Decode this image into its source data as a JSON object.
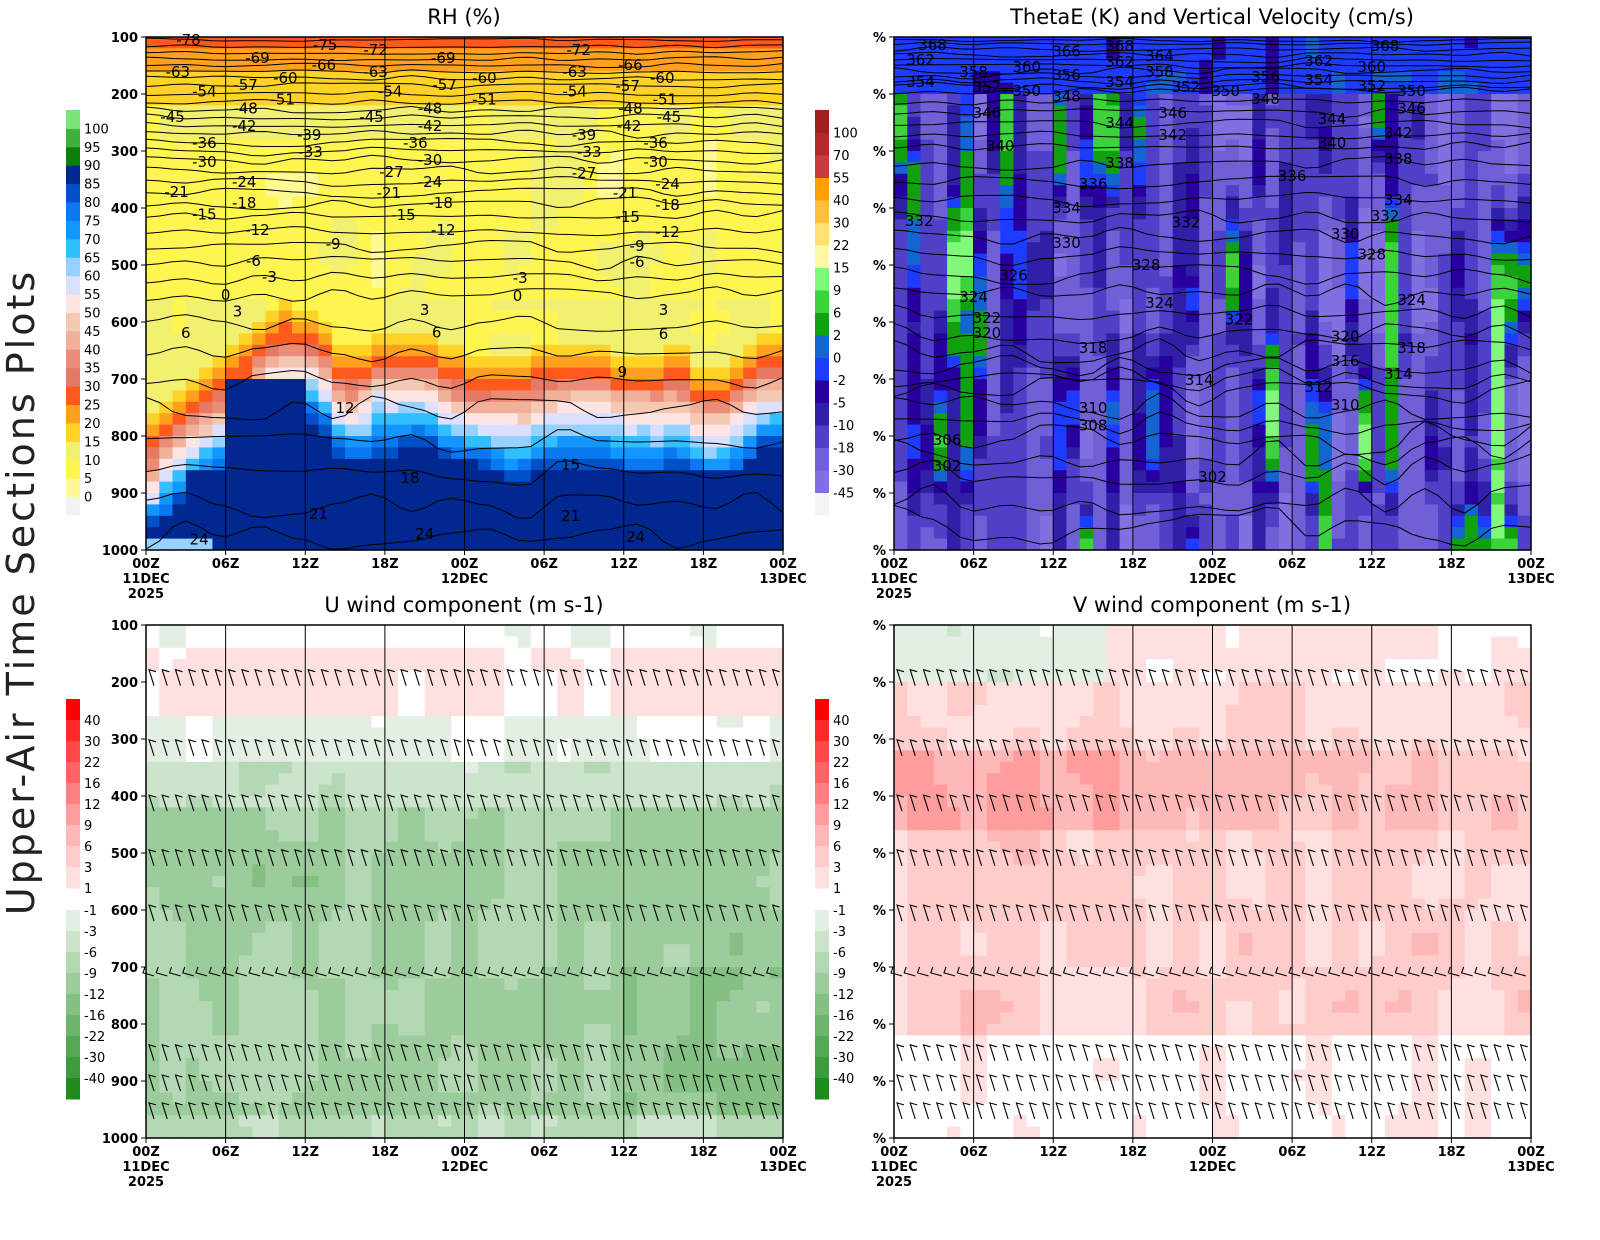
{
  "side_title": "Upper-Air Time Sections Plots",
  "x_ticks": [
    [
      "00Z",
      "11DEC",
      "2025"
    ],
    [
      "06Z"
    ],
    [
      "12Z"
    ],
    [
      "18Z"
    ],
    [
      "00Z",
      "12DEC"
    ],
    [
      "06Z"
    ],
    [
      "12Z"
    ],
    [
      "18Z"
    ],
    [
      "00Z",
      "13DEC"
    ]
  ],
  "x_tick_hours": [
    0,
    6,
    12,
    18,
    24,
    30,
    36,
    42,
    48
  ],
  "y_ticks_pressure": [
    "100",
    "200",
    "300",
    "400",
    "500",
    "600",
    "700",
    "800",
    "900",
    "1000"
  ],
  "y_ticks_percent": [
    "%",
    "%",
    "%",
    "%",
    "%",
    "%",
    "%",
    "%",
    "%",
    "%"
  ],
  "chart_data": [
    {
      "type": "heatmap",
      "title": "RH (%)",
      "x_range_hours": [
        0,
        48
      ],
      "y_range": [
        100,
        1000
      ],
      "colorbar": {
        "labels": [
          "0",
          "5",
          "10",
          "15",
          "20",
          "25",
          "30",
          "35",
          "40",
          "45",
          "50",
          "55",
          "60",
          "65",
          "70",
          "75",
          "80",
          "85",
          "90",
          "95",
          "100"
        ],
        "levels": [
          0,
          5,
          10,
          15,
          20,
          25,
          30,
          35,
          40,
          45,
          50,
          55,
          60,
          65,
          70,
          75,
          80,
          85,
          90,
          95,
          100
        ],
        "colors": [
          "#f2f2f2",
          "#fffa96",
          "#fff550",
          "#f2f070",
          "#ffd228",
          "#ffa01e",
          "#ff5a1e",
          "#e67864",
          "#eb8c78",
          "#f0b09a",
          "#f5c8b4",
          "#ffe4e4",
          "#dce0ff",
          "#96d2ff",
          "#32beff",
          "#1496ff",
          "#0a78f0",
          "#0050c8",
          "#002890",
          "#0a800a",
          "#3cb43c",
          "#78e678"
        ]
      },
      "contour_labels": [
        {
          "t": 3.2,
          "p": 105,
          "text": "-78"
        },
        {
          "t": 8.4,
          "p": 137,
          "text": "-69"
        },
        {
          "t": 13.5,
          "p": 114,
          "text": "-75"
        },
        {
          "t": 17.3,
          "p": 123,
          "text": "-72"
        },
        {
          "t": 22.4,
          "p": 137,
          "text": "-69"
        },
        {
          "t": 32.6,
          "p": 123,
          "text": "-72"
        },
        {
          "t": 2.4,
          "p": 161,
          "text": "-63"
        },
        {
          "t": 13.4,
          "p": 149,
          "text": "-66"
        },
        {
          "t": 17.3,
          "p": 161,
          "text": "-63"
        },
        {
          "t": 25.5,
          "p": 172,
          "text": "-60"
        },
        {
          "t": 32.3,
          "p": 161,
          "text": "-63"
        },
        {
          "t": 36.5,
          "p": 149,
          "text": "-66"
        },
        {
          "t": 7.5,
          "p": 184,
          "text": "-57"
        },
        {
          "t": 10.5,
          "p": 172,
          "text": "-60"
        },
        {
          "t": 22.5,
          "p": 184,
          "text": "-57"
        },
        {
          "t": 36.3,
          "p": 186,
          "text": "-57"
        },
        {
          "t": 38.9,
          "p": 172,
          "text": "-60"
        },
        {
          "t": 4.4,
          "p": 196,
          "text": "-54"
        },
        {
          "t": 18.4,
          "p": 196,
          "text": "-54"
        },
        {
          "t": 25.5,
          "p": 210,
          "text": "-51"
        },
        {
          "t": 32.3,
          "p": 196,
          "text": "-54"
        },
        {
          "t": 10.3,
          "p": 210,
          "text": "-51"
        },
        {
          "t": 39.1,
          "p": 210,
          "text": "-51"
        },
        {
          "t": 7.5,
          "p": 225,
          "text": "-48"
        },
        {
          "t": 21.4,
          "p": 225,
          "text": "-48"
        },
        {
          "t": 36.5,
          "p": 225,
          "text": "-48"
        },
        {
          "t": 2,
          "p": 240,
          "text": "-45"
        },
        {
          "t": 17,
          "p": 240,
          "text": "-45"
        },
        {
          "t": 39.4,
          "p": 240,
          "text": "-45"
        },
        {
          "t": 7.4,
          "p": 256,
          "text": "-42"
        },
        {
          "t": 21.4,
          "p": 256,
          "text": "-42"
        },
        {
          "t": 36.4,
          "p": 256,
          "text": "-42"
        },
        {
          "t": 12.3,
          "p": 272,
          "text": "-39"
        },
        {
          "t": 33,
          "p": 272,
          "text": "-39"
        },
        {
          "t": 4.4,
          "p": 286,
          "text": "-36"
        },
        {
          "t": 20.3,
          "p": 286,
          "text": "-36"
        },
        {
          "t": 38.4,
          "p": 286,
          "text": "-36"
        },
        {
          "t": 12.4,
          "p": 302,
          "text": "-33"
        },
        {
          "t": 33.4,
          "p": 302,
          "text": "-33"
        },
        {
          "t": 4.4,
          "p": 319,
          "text": "-30"
        },
        {
          "t": 21.4,
          "p": 316,
          "text": "-30"
        },
        {
          "t": 38.4,
          "p": 319,
          "text": "-30"
        },
        {
          "t": 18.5,
          "p": 337,
          "text": "-27"
        },
        {
          "t": 33,
          "p": 339,
          "text": "-27"
        },
        {
          "t": 7.4,
          "p": 354,
          "text": "-24"
        },
        {
          "t": 21.4,
          "p": 354,
          "text": "-24"
        },
        {
          "t": 39.3,
          "p": 358,
          "text": "-24"
        },
        {
          "t": 2.3,
          "p": 372,
          "text": "-21"
        },
        {
          "t": 18.3,
          "p": 374,
          "text": "-21"
        },
        {
          "t": 36.1,
          "p": 374,
          "text": "-21"
        },
        {
          "t": 7.4,
          "p": 391,
          "text": "-18"
        },
        {
          "t": 22.2,
          "p": 391,
          "text": "-18"
        },
        {
          "t": 39.3,
          "p": 395,
          "text": "-18"
        },
        {
          "t": 4.4,
          "p": 411,
          "text": "-15"
        },
        {
          "t": 19.4,
          "p": 412,
          "text": "-15"
        },
        {
          "t": 36.3,
          "p": 416,
          "text": "-15"
        },
        {
          "t": 8.4,
          "p": 439,
          "text": "-12"
        },
        {
          "t": 22.4,
          "p": 439,
          "text": "-12"
        },
        {
          "t": 39.3,
          "p": 442,
          "text": "-12"
        },
        {
          "t": 14.1,
          "p": 463,
          "text": "-9"
        },
        {
          "t": 37,
          "p": 467,
          "text": "-9"
        },
        {
          "t": 8.1,
          "p": 493,
          "text": "-6"
        },
        {
          "t": 37,
          "p": 495,
          "text": "-6"
        },
        {
          "t": 9.3,
          "p": 521,
          "text": "-3"
        },
        {
          "t": 28.2,
          "p": 523,
          "text": "-3"
        },
        {
          "t": 6,
          "p": 553,
          "text": "0"
        },
        {
          "t": 28,
          "p": 554,
          "text": "0"
        },
        {
          "t": 6.9,
          "p": 582,
          "text": "3"
        },
        {
          "t": 21,
          "p": 579,
          "text": "3"
        },
        {
          "t": 39,
          "p": 579,
          "text": "3"
        },
        {
          "t": 3,
          "p": 619,
          "text": "6"
        },
        {
          "t": 21.9,
          "p": 618,
          "text": "6"
        },
        {
          "t": 39,
          "p": 621,
          "text": "6"
        },
        {
          "t": 35.9,
          "p": 688,
          "text": "9"
        },
        {
          "t": 15,
          "p": 751,
          "text": "12"
        },
        {
          "t": 32,
          "p": 851,
          "text": "15"
        },
        {
          "t": 19.9,
          "p": 874,
          "text": "18"
        },
        {
          "t": 13,
          "p": 937,
          "text": "21"
        },
        {
          "t": 32,
          "p": 940,
          "text": "21"
        },
        {
          "t": 4,
          "p": 982,
          "text": "24"
        },
        {
          "t": 21,
          "p": 972,
          "text": "24"
        },
        {
          "t": 36.9,
          "p": 977,
          "text": "24"
        }
      ]
    },
    {
      "type": "heatmap",
      "title": "ThetaE (K) and Vertical Velocity (cm/s)",
      "x_range_hours": [
        0,
        48
      ],
      "colorbar": {
        "labels": [
          "-45",
          "-30",
          "-18",
          "-10",
          "-5",
          "-2",
          "0",
          "2",
          "6",
          "9",
          "15",
          "22",
          "30",
          "40",
          "55",
          "70",
          "100"
        ],
        "levels": [
          -45,
          -30,
          -18,
          -10,
          -5,
          -2,
          0,
          2,
          6,
          9,
          15,
          22,
          30,
          40,
          55,
          70,
          100
        ],
        "colors": [
          "#f4f4f4",
          "#8070e0",
          "#7060d8",
          "#5040c8",
          "#3020a8",
          "#2800a0",
          "#1e3cff",
          "#1464d2",
          "#10a010",
          "#3cd23c",
          "#80f878",
          "#fff8a8",
          "#ffe070",
          "#ffbe3c",
          "#ffa000",
          "#c83c3c",
          "#b42828",
          "#a02020"
        ]
      },
      "contour_labels": [
        {
          "t": 2.9,
          "p": 114,
          "text": "368"
        },
        {
          "t": 2,
          "p": 140,
          "text": "362"
        },
        {
          "t": 2,
          "p": 179,
          "text": "354"
        },
        {
          "t": 6,
          "p": 161,
          "text": "358"
        },
        {
          "t": 7,
          "p": 188,
          "text": "352"
        },
        {
          "t": 10,
          "p": 153,
          "text": "360"
        },
        {
          "t": 10,
          "p": 195,
          "text": "350"
        },
        {
          "t": 13,
          "p": 125,
          "text": "366"
        },
        {
          "t": 13,
          "p": 167,
          "text": "356"
        },
        {
          "t": 13,
          "p": 204,
          "text": "348"
        },
        {
          "t": 17,
          "p": 116,
          "text": "368"
        },
        {
          "t": 17,
          "p": 144,
          "text": "362"
        },
        {
          "t": 17,
          "p": 179,
          "text": "354"
        },
        {
          "t": 20,
          "p": 133,
          "text": "364"
        },
        {
          "t": 20,
          "p": 161,
          "text": "358"
        },
        {
          "t": 22,
          "p": 188,
          "text": "352"
        },
        {
          "t": 25,
          "p": 195,
          "text": "350"
        },
        {
          "t": 28,
          "p": 170,
          "text": "356"
        },
        {
          "t": 28,
          "p": 209,
          "text": "348"
        },
        {
          "t": 32,
          "p": 142,
          "text": "362"
        },
        {
          "t": 32,
          "p": 175,
          "text": "354"
        },
        {
          "t": 37,
          "p": 116,
          "text": "368"
        },
        {
          "t": 36,
          "p": 153,
          "text": "360"
        },
        {
          "t": 36,
          "p": 186,
          "text": "352"
        },
        {
          "t": 39,
          "p": 195,
          "text": "350"
        },
        {
          "t": 39,
          "p": 225,
          "text": "346"
        },
        {
          "t": 7,
          "p": 233,
          "text": "346"
        },
        {
          "t": 8,
          "p": 291,
          "text": "340"
        },
        {
          "t": 17,
          "p": 251,
          "text": "344"
        },
        {
          "t": 21,
          "p": 272,
          "text": "342"
        },
        {
          "t": 21,
          "p": 233,
          "text": "346"
        },
        {
          "t": 33,
          "p": 244,
          "text": "344"
        },
        {
          "t": 33,
          "p": 286,
          "text": "340"
        },
        {
          "t": 38,
          "p": 268,
          "text": "342"
        },
        {
          "t": 38,
          "p": 314,
          "text": "338"
        },
        {
          "t": 17,
          "p": 321,
          "text": "338"
        },
        {
          "t": 15,
          "p": 358,
          "text": "336"
        },
        {
          "t": 30,
          "p": 344,
          "text": "336"
        },
        {
          "t": 13,
          "p": 400,
          "text": "334"
        },
        {
          "t": 38,
          "p": 386,
          "text": "334"
        },
        {
          "t": 37,
          "p": 414,
          "text": "332"
        },
        {
          "t": 1.9,
          "p": 423,
          "text": "332"
        },
        {
          "t": 22,
          "p": 425,
          "text": "332"
        },
        {
          "t": 13,
          "p": 461,
          "text": "330"
        },
        {
          "t": 34,
          "p": 446,
          "text": "330"
        },
        {
          "t": 36,
          "p": 482,
          "text": "328"
        },
        {
          "t": 19,
          "p": 500,
          "text": "328"
        },
        {
          "t": 9,
          "p": 518,
          "text": "326"
        },
        {
          "t": 6,
          "p": 556,
          "text": "324"
        },
        {
          "t": 20,
          "p": 567,
          "text": "324"
        },
        {
          "t": 39,
          "p": 561,
          "text": "324"
        },
        {
          "t": 7,
          "p": 593,
          "text": "322"
        },
        {
          "t": 26,
          "p": 596,
          "text": "322"
        },
        {
          "t": 7,
          "p": 619,
          "text": "320"
        },
        {
          "t": 34,
          "p": 625,
          "text": "320"
        },
        {
          "t": 15,
          "p": 646,
          "text": "318"
        },
        {
          "t": 39,
          "p": 646,
          "text": "318"
        },
        {
          "t": 34,
          "p": 668,
          "text": "316"
        },
        {
          "t": 23,
          "p": 702,
          "text": "314"
        },
        {
          "t": 38,
          "p": 691,
          "text": "314"
        },
        {
          "t": 32,
          "p": 714,
          "text": "312"
        },
        {
          "t": 15,
          "p": 751,
          "text": "310"
        },
        {
          "t": 34,
          "p": 746,
          "text": "310"
        },
        {
          "t": 15,
          "p": 782,
          "text": "308"
        },
        {
          "t": 4,
          "p": 807,
          "text": "306"
        },
        {
          "t": 4,
          "p": 853,
          "text": "302"
        },
        {
          "t": 24,
          "p": 872,
          "text": "302"
        }
      ]
    },
    {
      "type": "heatmap",
      "title": "U wind component (m s-1)",
      "x_range_hours": [
        0,
        48
      ],
      "barb_levels": [
        196,
        319,
        416,
        512,
        609,
        705,
        854,
        907,
        956
      ],
      "colorbar": {
        "pos_labels": [
          "40",
          "30",
          "22",
          "16",
          "12",
          "9",
          "6",
          "3",
          "1"
        ],
        "neg_labels": [
          "-1",
          "-3",
          "-6",
          "-9",
          "-12",
          "-16",
          "-22",
          "-30",
          "-40"
        ],
        "pos_colors": [
          "#ff0000",
          "#ff2828",
          "#ff4848",
          "#ff6464",
          "#ff8080",
          "#ff9c9c",
          "#ffb8b8",
          "#ffcccc",
          "#ffe0e0"
        ],
        "neg_colors": [
          "#e4efe4",
          "#cce4cc",
          "#b4d8b4",
          "#9ccc9c",
          "#84c084",
          "#6cb46c",
          "#54a854",
          "#3c9c3c",
          "#1e8c1e"
        ]
      }
    },
    {
      "type": "heatmap",
      "title": "V wind component (m s-1)",
      "x_range_hours": [
        0,
        48
      ],
      "barb_levels": [
        196,
        319,
        416,
        512,
        609,
        705,
        854,
        907,
        956
      ],
      "colorbar": {
        "pos_labels": [
          "40",
          "30",
          "22",
          "16",
          "12",
          "9",
          "6",
          "3",
          "1"
        ],
        "neg_labels": [
          "-1",
          "-3",
          "-6",
          "-9",
          "-12",
          "-16",
          "-22",
          "-30",
          "-40"
        ],
        "pos_colors": [
          "#ff0000",
          "#ff2828",
          "#ff4848",
          "#ff6464",
          "#ff8080",
          "#ff9c9c",
          "#ffb8b8",
          "#ffcccc",
          "#ffe0e0"
        ],
        "neg_colors": [
          "#e4efe4",
          "#cce4cc",
          "#b4d8b4",
          "#9ccc9c",
          "#84c084",
          "#6cb46c",
          "#54a854",
          "#3c9c3c",
          "#1e8c1e"
        ]
      }
    }
  ]
}
